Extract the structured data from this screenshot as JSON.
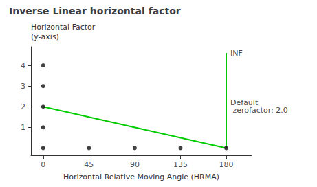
{
  "chart_data": {
    "type": "line",
    "title": "Inverse Linear horizontal factor",
    "xlabel": "Horizontal Relative Moving Angle (HRMA)",
    "ylabel": "Horizontal Factor\n(y-axis)",
    "xlim": [
      -12,
      205
    ],
    "ylim": [
      -0.35,
      4.9
    ],
    "xticks": [
      0,
      45,
      90,
      135,
      180
    ],
    "yticks": [
      1,
      2,
      3,
      4
    ],
    "grid": false,
    "series": [
      {
        "type": "line",
        "color": "#00cc00",
        "x": [
          0,
          180
        ],
        "values": [
          2.0,
          0.0
        ]
      },
      {
        "type": "line",
        "color": "#00cc00",
        "x": [
          180,
          180
        ],
        "values": [
          0.0,
          4.6
        ]
      },
      {
        "type": "scatter",
        "color": "#111111",
        "x": [
          0,
          0,
          0,
          0,
          0,
          45,
          90,
          135,
          180
        ],
        "values": [
          0,
          1,
          2,
          3,
          4,
          0,
          0,
          0,
          0
        ]
      }
    ],
    "annotations": [
      "INF",
      "Default\n zerofactor: 2.0"
    ]
  }
}
